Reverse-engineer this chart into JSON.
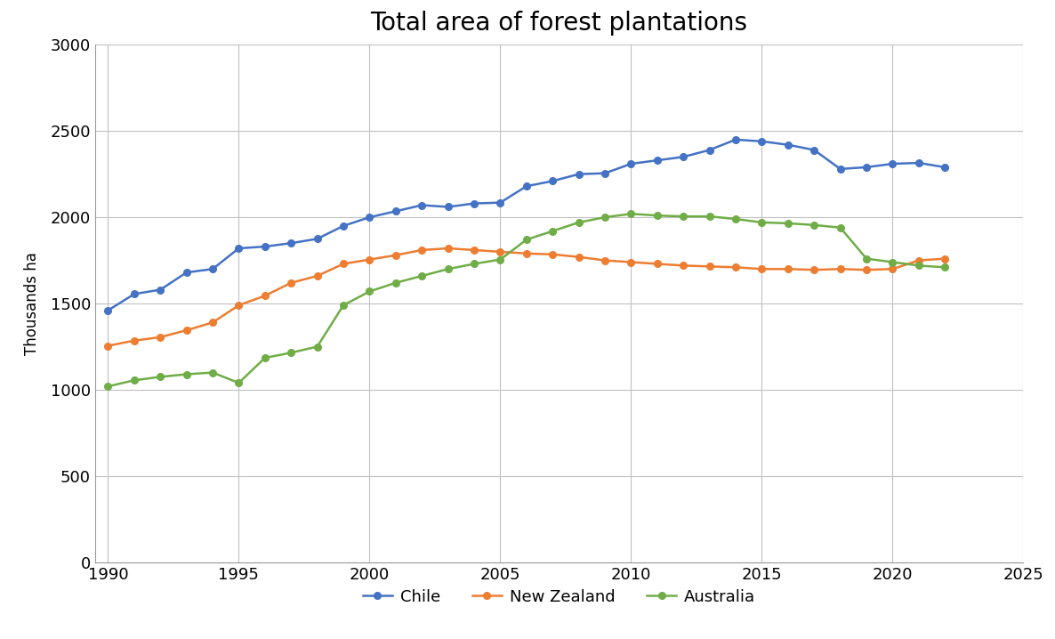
{
  "title": "Total area of forest plantations",
  "ylabel": "Thousands ha",
  "xlim": [
    1989.5,
    2025
  ],
  "ylim": [
    0,
    3000
  ],
  "yticks": [
    0,
    500,
    1000,
    1500,
    2000,
    2500,
    3000
  ],
  "xticks": [
    1990,
    1995,
    2000,
    2005,
    2010,
    2015,
    2020,
    2025
  ],
  "chile": {
    "label": "Chile",
    "color": "#4472C4",
    "years": [
      1990,
      1991,
      1992,
      1993,
      1994,
      1995,
      1996,
      1997,
      1998,
      1999,
      2000,
      2001,
      2002,
      2003,
      2004,
      2005,
      2006,
      2007,
      2008,
      2009,
      2010,
      2011,
      2012,
      2013,
      2014,
      2015,
      2016,
      2017,
      2018,
      2019,
      2020,
      2021,
      2022
    ],
    "values": [
      1460,
      1555,
      1580,
      1680,
      1700,
      1820,
      1830,
      1850,
      1875,
      1950,
      2000,
      2035,
      2070,
      2060,
      2080,
      2085,
      2180,
      2210,
      2250,
      2255,
      2310,
      2330,
      2350,
      2390,
      2450,
      2440,
      2420,
      2390,
      2280,
      2290,
      2310,
      2315,
      2290
    ]
  },
  "new_zealand": {
    "label": "New Zealand",
    "color": "#ED7D31",
    "years": [
      1990,
      1991,
      1992,
      1993,
      1994,
      1995,
      1996,
      1997,
      1998,
      1999,
      2000,
      2001,
      2002,
      2003,
      2004,
      2005,
      2006,
      2007,
      2008,
      2009,
      2010,
      2011,
      2012,
      2013,
      2014,
      2015,
      2016,
      2017,
      2018,
      2019,
      2020,
      2021,
      2022
    ],
    "values": [
      1255,
      1285,
      1305,
      1345,
      1390,
      1490,
      1545,
      1620,
      1660,
      1730,
      1755,
      1780,
      1810,
      1820,
      1810,
      1800,
      1790,
      1785,
      1770,
      1750,
      1740,
      1730,
      1720,
      1715,
      1710,
      1700,
      1700,
      1695,
      1700,
      1695,
      1700,
      1750,
      1760
    ]
  },
  "australia": {
    "label": "Australia",
    "color": "#70AD47",
    "years": [
      1990,
      1991,
      1992,
      1993,
      1994,
      1995,
      1996,
      1997,
      1998,
      1999,
      2000,
      2001,
      2002,
      2003,
      2004,
      2005,
      2006,
      2007,
      2008,
      2009,
      2010,
      2011,
      2012,
      2013,
      2014,
      2015,
      2016,
      2017,
      2018,
      2019,
      2020,
      2021,
      2022
    ],
    "values": [
      1020,
      1055,
      1075,
      1090,
      1100,
      1040,
      1185,
      1215,
      1250,
      1490,
      1570,
      1620,
      1660,
      1700,
      1730,
      1755,
      1870,
      1920,
      1970,
      2000,
      2020,
      2010,
      2005,
      2005,
      1990,
      1970,
      1965,
      1955,
      1940,
      1760,
      1740,
      1720,
      1710
    ]
  },
  "background_color": "#FFFFFF",
  "grid_color": "#C0C0C0",
  "title_fontsize": 20,
  "label_fontsize": 12,
  "tick_fontsize": 13,
  "legend_fontsize": 13
}
